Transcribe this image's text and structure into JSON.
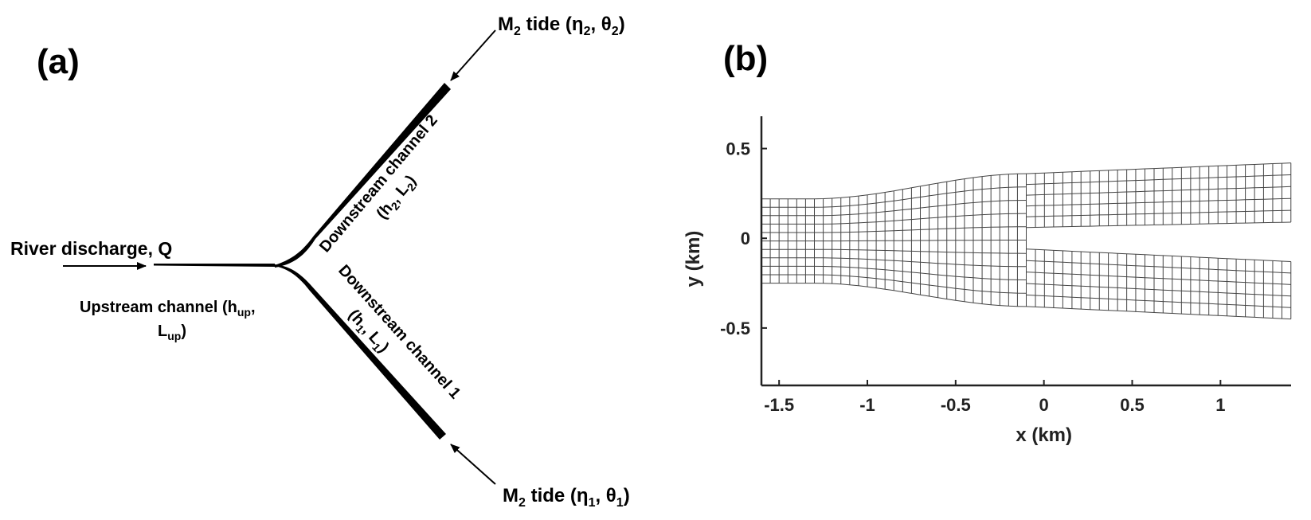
{
  "panel_a": {
    "letter": "(a)",
    "tide_top": {
      "prefix": "M",
      "sub": "2",
      "text": " tide (η",
      "eta_sub": "2",
      "mid": ", θ",
      "theta_sub": "2",
      "end": ")"
    },
    "tide_bottom": {
      "prefix": "M",
      "sub": "2",
      "text": " tide (η",
      "eta_sub": "1",
      "mid": ", θ",
      "theta_sub": "1",
      "end": ")"
    },
    "river": "River discharge, Q",
    "upstream": {
      "line1_prefix": "Upstream channel (h",
      "line1_sub": "up",
      "line1_end": ",",
      "line2_prefix": "L",
      "line2_sub": "up",
      "line2_end": ")"
    },
    "down2": {
      "line1": "Downstream channel 2",
      "line2_a": "(h",
      "sub_h": "2",
      "line2_b": ", L",
      "sub_l": "2",
      "line2_c": ")"
    },
    "down1": {
      "line1": "Downstream channel 1",
      "line2_a": "(h",
      "sub_h": "1",
      "line2_b": ", L",
      "sub_l": "1",
      "line2_c": ")"
    }
  },
  "panel_b": {
    "letter": "(b)",
    "xlabel": "x (km)",
    "ylabel": "y (km)",
    "xlim": [
      -1.6,
      1.4
    ],
    "ylim": [
      -0.82,
      0.68
    ],
    "xticks": [
      -1.5,
      -1,
      -0.5,
      0,
      0.5,
      1
    ],
    "xtick_labels": [
      "-1.5",
      "-1",
      "-0.5",
      "0",
      "0.5",
      "1"
    ],
    "yticks": [
      -0.5,
      0,
      0.5
    ],
    "ytick_labels": [
      "-0.5",
      "0",
      "0.5"
    ],
    "upstream_halfwidth": [
      0.22,
      -0.25
    ],
    "junction_x": -0.1,
    "branch_upper_outer": [
      0.36,
      0.42
    ],
    "branch_upper_inner": [
      0.06,
      0.09
    ],
    "branch_lower_inner": [
      -0.06,
      -0.13
    ],
    "branch_lower_outer": [
      -0.38,
      -0.45
    ]
  }
}
